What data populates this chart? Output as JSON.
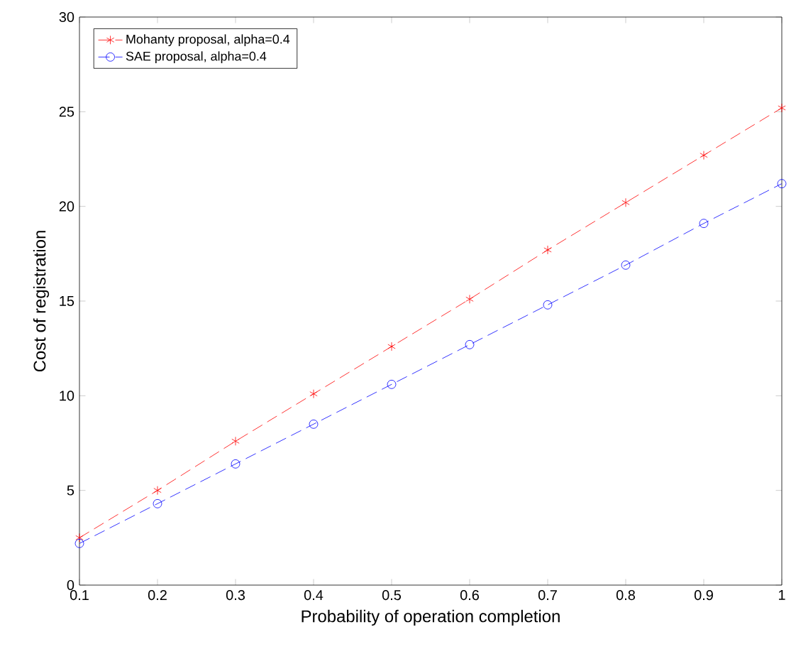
{
  "chart_data": {
    "type": "line",
    "xlabel": "Probability of operation completion",
    "ylabel": "Cost of registration",
    "x": [
      0.1,
      0.2,
      0.3,
      0.4,
      0.5,
      0.6,
      0.7,
      0.8,
      0.9,
      1.0
    ],
    "series": [
      {
        "name": "Mohanty proposal, alpha=0.4",
        "color": "#ff0000",
        "marker": "cross",
        "line_style": "dashed",
        "values": [
          2.5,
          5.0,
          7.6,
          10.1,
          12.6,
          15.1,
          17.7,
          20.2,
          22.7,
          25.2
        ]
      },
      {
        "name": "SAE proposal, alpha=0.4",
        "color": "#0000ff",
        "marker": "circle",
        "line_style": "dashed",
        "values": [
          2.2,
          4.3,
          6.4,
          8.5,
          10.6,
          12.7,
          14.8,
          16.9,
          19.1,
          21.2
        ]
      }
    ],
    "xlim": [
      0.1,
      1
    ],
    "ylim": [
      0,
      30
    ],
    "xticks": [
      0.1,
      0.2,
      0.3,
      0.4,
      0.5,
      0.6,
      0.7,
      0.8,
      0.9,
      1
    ],
    "yticks": [
      0,
      5,
      10,
      15,
      20,
      25,
      30
    ],
    "legend": "top left",
    "grid": false
  }
}
